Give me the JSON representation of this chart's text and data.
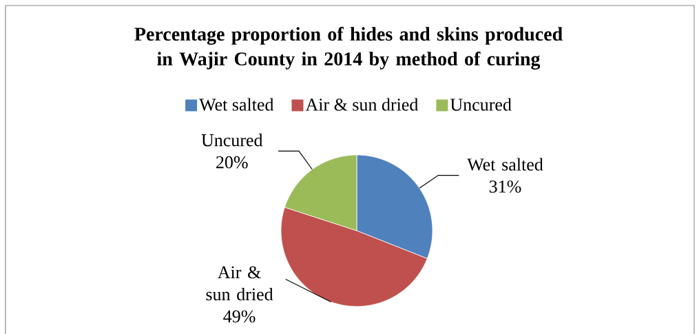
{
  "chart_data": {
    "type": "pie",
    "title": "Percentage proportion of hides and skins produced in Wajir County in 2014 by method of curing",
    "categories": [
      "Wet salted",
      "Air & sun dried",
      "Uncured"
    ],
    "values": [
      31,
      49,
      20
    ],
    "value_labels": [
      "31%",
      "49%",
      "20%"
    ],
    "colors": [
      "#4f81bd",
      "#c0504d",
      "#9bbb59"
    ],
    "legend": "top"
  }
}
